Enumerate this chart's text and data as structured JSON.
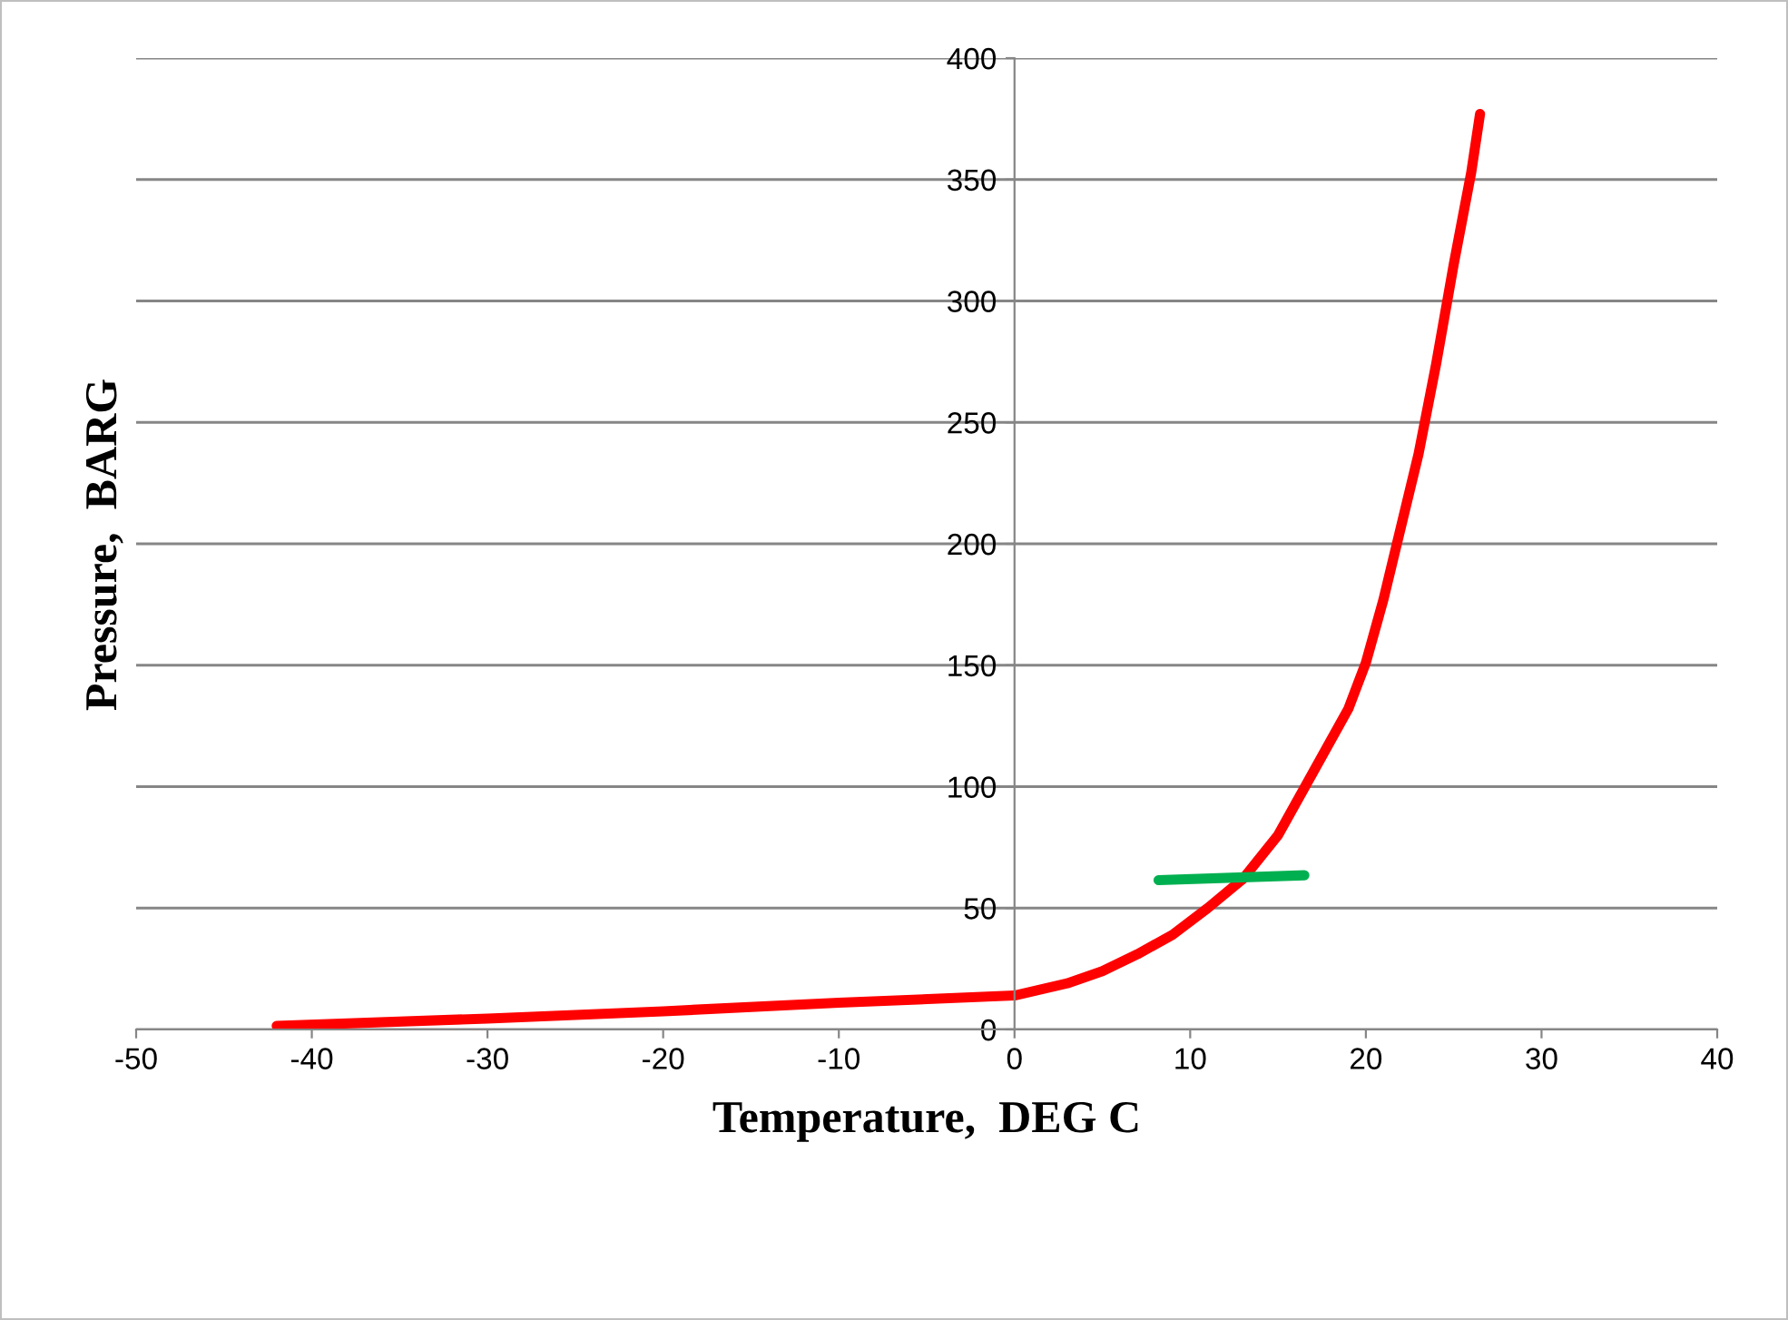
{
  "chart_data": {
    "type": "line",
    "xlabel": "Temperature,  DEG C",
    "ylabel": "Pressure,  BARG",
    "xlim": [
      -50,
      40
    ],
    "xticks": [
      -50,
      -40,
      -30,
      -20,
      -10,
      0,
      10,
      20,
      30,
      40
    ],
    "ylim": [
      0,
      400
    ],
    "yticks": [
      0,
      50,
      100,
      150,
      200,
      250,
      300,
      350,
      400
    ],
    "grid": "y",
    "legend": false,
    "series": [
      {
        "color": "#ff0000",
        "x": [
          -42,
          -30,
          -20,
          -10,
          0,
          3,
          5,
          7,
          9,
          11,
          13,
          15,
          17,
          19,
          20,
          21,
          22,
          23,
          24,
          25,
          26,
          26.5
        ],
        "values": [
          1.5,
          4.5,
          7.5,
          11,
          14,
          19,
          24,
          31,
          39,
          50,
          62,
          80,
          106,
          132,
          151,
          177,
          207,
          237,
          274,
          315,
          353,
          377
        ]
      },
      {
        "color": "#00b050",
        "x": [
          8.2,
          16.5
        ],
        "values": [
          61.5,
          63.5
        ]
      }
    ]
  }
}
